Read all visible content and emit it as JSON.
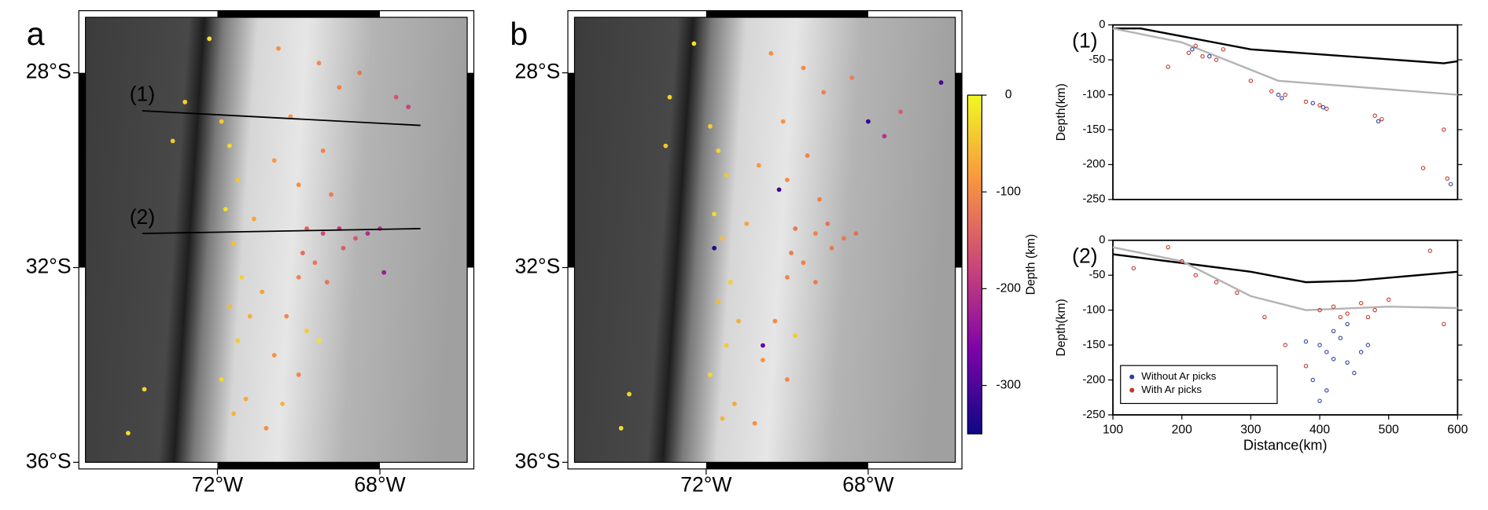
{
  "chart_data": [
    {
      "type": "map",
      "panel": "a",
      "xlim": [
        -75.25,
        -65.85
      ],
      "ylim": [
        -36,
        -26.86
      ],
      "xticks": [
        {
          "value": -72,
          "label": "72°W"
        },
        {
          "value": -68,
          "label": "68°W"
        }
      ],
      "yticks": [
        {
          "value": -28,
          "label": "28°S"
        },
        {
          "value": -32,
          "label": "32°S"
        },
        {
          "value": -36,
          "label": "36°S"
        }
      ],
      "clim": [
        -350,
        0
      ],
      "colormap": [
        "#0d0887",
        "#7e03a8",
        "#cc4778",
        "#f89540",
        "#f0f921"
      ],
      "profiles": [
        {
          "label": "(1)",
          "lon": [
            -73.85,
            -67.0
          ],
          "lat": [
            -28.78,
            -29.08
          ]
        },
        {
          "label": "(2)",
          "lon": [
            -73.85,
            -67.0
          ],
          "lat": [
            -31.3,
            -31.2
          ]
        }
      ],
      "events": {
        "lon": [
          -71.9,
          -71.7,
          -71.5,
          -71.8,
          -71.6,
          -71.4,
          -71.7,
          -71.5,
          -71.9,
          -71.6,
          -72.2,
          -72.8,
          -73.1,
          -73.8,
          -74.2,
          -71.3,
          -71.1,
          -71.2,
          -70.5,
          -69.5,
          -69.0,
          -70.2,
          -69.4,
          -70.0,
          -69.2,
          -70.6,
          -68.5,
          -67.3,
          -67.6,
          -69.8,
          -69.4,
          -69.0,
          -68.6,
          -68.3,
          -69.9,
          -69.6,
          -70.0,
          -69.3,
          -68.9,
          -68.0,
          -67.9,
          -70.3,
          -70.6,
          -70.0,
          -70.8,
          -69.8,
          -69.5,
          -70.4,
          -70.9
        ],
        "lat": [
          -29.0,
          -29.5,
          -30.2,
          -30.8,
          -31.5,
          -32.2,
          -32.8,
          -33.5,
          -34.3,
          -35.0,
          -27.3,
          -28.6,
          -29.4,
          -34.5,
          -35.4,
          -34.7,
          -31.0,
          -33.0,
          -27.5,
          -27.8,
          -28.3,
          -28.9,
          -29.6,
          -30.3,
          -30.5,
          -29.8,
          -28.0,
          -28.7,
          -28.5,
          -31.2,
          -31.3,
          -31.2,
          -31.4,
          -31.3,
          -31.7,
          -31.9,
          -32.2,
          -32.3,
          -31.6,
          -31.2,
          -32.1,
          -33.0,
          -33.8,
          -34.2,
          -35.3,
          -33.3,
          -33.5,
          -34.8,
          -32.5
        ],
        "depth": [
          -40,
          -30,
          -45,
          -25,
          -50,
          -35,
          -55,
          -40,
          -30,
          -60,
          -20,
          -35,
          -45,
          -30,
          -25,
          -70,
          -75,
          -65,
          -95,
          -100,
          -110,
          -90,
          -105,
          -95,
          -115,
          -85,
          -120,
          -180,
          -160,
          -140,
          -170,
          -190,
          -160,
          -210,
          -130,
          -120,
          -110,
          -125,
          -150,
          -200,
          -230,
          -100,
          -90,
          -105,
          -95,
          -40,
          -20,
          -60,
          -80
        ]
      }
    },
    {
      "type": "map",
      "panel": "b",
      "xlim": [
        -75.25,
        -65.85
      ],
      "ylim": [
        -36,
        -26.86
      ],
      "xticks": [
        {
          "value": -72,
          "label": "72°W"
        },
        {
          "value": -68,
          "label": "68°W"
        }
      ],
      "yticks": [
        {
          "value": -28,
          "label": "28°S"
        },
        {
          "value": -32,
          "label": "32°S"
        },
        {
          "value": -36,
          "label": "36°S"
        }
      ],
      "clim": [
        -350,
        0
      ],
      "colormap": [
        "#0d0887",
        "#7e03a8",
        "#cc4778",
        "#f89540",
        "#f0f921"
      ],
      "colorbar": {
        "label": "Depth (km)",
        "ticks": [
          0,
          -100,
          -200,
          -300
        ]
      },
      "events": {
        "lon": [
          -71.9,
          -71.7,
          -71.5,
          -71.8,
          -71.6,
          -71.4,
          -71.7,
          -71.5,
          -71.9,
          -71.6,
          -72.3,
          -72.9,
          -73.0,
          -73.9,
          -74.1,
          -71.3,
          -71.0,
          -71.2,
          -70.4,
          -69.6,
          -69.1,
          -70.1,
          -69.5,
          -70.0,
          -69.2,
          -70.7,
          -68.4,
          -67.2,
          -69.8,
          -69.3,
          -69.0,
          -68.6,
          -68.3,
          -69.9,
          -69.6,
          -70.0,
          -69.3,
          -68.9,
          -70.3,
          -70.6,
          -70.0,
          -70.8,
          -69.8,
          -68.0,
          -70.2,
          -71.8,
          -66.2,
          -70.6,
          -67.6
        ],
        "lat": [
          -29.1,
          -29.6,
          -30.1,
          -30.9,
          -31.4,
          -32.3,
          -32.7,
          -33.6,
          -34.2,
          -35.1,
          -27.4,
          -28.5,
          -29.5,
          -34.6,
          -35.3,
          -34.8,
          -31.1,
          -33.1,
          -27.6,
          -27.9,
          -28.4,
          -29.0,
          -29.7,
          -30.2,
          -30.6,
          -29.9,
          -28.1,
          -28.8,
          -31.2,
          -31.3,
          -31.1,
          -31.4,
          -31.3,
          -31.7,
          -31.9,
          -32.2,
          -32.3,
          -31.6,
          -33.1,
          -33.9,
          -34.3,
          -35.2,
          -33.4,
          -29.0,
          -30.4,
          -31.6,
          -28.2,
          -33.6,
          -29.3
        ],
        "depth": [
          -40,
          -30,
          -45,
          -25,
          -50,
          -35,
          -55,
          -40,
          -30,
          -60,
          -20,
          -35,
          -45,
          -30,
          -25,
          -70,
          -75,
          -65,
          -95,
          -100,
          -110,
          -90,
          -105,
          -95,
          -110,
          -85,
          -115,
          -150,
          -120,
          -110,
          -125,
          -120,
          -130,
          -115,
          -110,
          -105,
          -115,
          -120,
          -100,
          -90,
          -105,
          -95,
          -40,
          -320,
          -310,
          -330,
          -300,
          -280,
          -200
        ]
      }
    },
    {
      "type": "scatter",
      "label": "(1)",
      "ylabel": "Depth(km)",
      "xlim": [
        100,
        600
      ],
      "ylim": [
        -250,
        0
      ],
      "yticks": [
        0,
        -50,
        -100,
        -150,
        -200,
        -250
      ],
      "lines": [
        {
          "color": "#000000",
          "x": [
            100,
            140,
            300,
            580,
            600
          ],
          "y": [
            -5,
            -5,
            -35,
            -55,
            -52
          ]
        },
        {
          "color": "#b4b4b4",
          "x": [
            100,
            200,
            340,
            600
          ],
          "y": [
            -5,
            -25,
            -80,
            -100
          ]
        }
      ],
      "series": [
        {
          "color": "#c0392b",
          "x": [
            180,
            210,
            220,
            230,
            250,
            260,
            300,
            330,
            350,
            380,
            400,
            410,
            480,
            490,
            580,
            585,
            550
          ],
          "values": [
            -60,
            -40,
            -30,
            -45,
            -50,
            -35,
            -80,
            -95,
            -100,
            -110,
            -115,
            -120,
            -130,
            -135,
            -150,
            -220,
            -205
          ]
        },
        {
          "color": "#2c3e9f",
          "x": [
            215,
            240,
            340,
            345,
            390,
            405,
            485,
            590
          ],
          "values": [
            -35,
            -45,
            -100,
            -105,
            -112,
            -118,
            -138,
            -228
          ]
        }
      ]
    },
    {
      "type": "scatter",
      "label": "(2)",
      "ylabel": "Depth(km)",
      "xlabel": "Distance(km)",
      "xlim": [
        100,
        600
      ],
      "ylim": [
        -250,
        0
      ],
      "yticks": [
        0,
        -50,
        -100,
        -150,
        -200,
        -250
      ],
      "xticks": [
        100,
        200,
        300,
        400,
        500,
        600
      ],
      "legend": "lower left",
      "lines": [
        {
          "color": "#000000",
          "x": [
            100,
            300,
            380,
            450,
            600
          ],
          "y": [
            -20,
            -45,
            -60,
            -58,
            -45
          ]
        },
        {
          "color": "#b4b4b4",
          "x": [
            100,
            200,
            300,
            380,
            500,
            600
          ],
          "y": [
            -10,
            -30,
            -80,
            -100,
            -95,
            -97
          ]
        }
      ],
      "series": [
        {
          "name": "Without Ar picks",
          "color": "#2c3e9f",
          "x": [
            380,
            400,
            410,
            420,
            430,
            440,
            450,
            460,
            390,
            410,
            470,
            420,
            440,
            400
          ],
          "values": [
            -145,
            -150,
            -160,
            -170,
            -140,
            -175,
            -190,
            -160,
            -200,
            -215,
            -150,
            -130,
            -120,
            -230
          ]
        },
        {
          "name": "With Ar picks",
          "color": "#c0392b",
          "x": [
            130,
            180,
            200,
            220,
            250,
            280,
            320,
            400,
            420,
            440,
            460,
            480,
            500,
            430,
            470,
            380,
            350,
            580,
            560
          ],
          "values": [
            -40,
            -10,
            -30,
            -50,
            -60,
            -75,
            -110,
            -100,
            -95,
            -105,
            -90,
            -100,
            -85,
            -110,
            -110,
            -180,
            -150,
            -120,
            -15
          ]
        }
      ]
    }
  ]
}
